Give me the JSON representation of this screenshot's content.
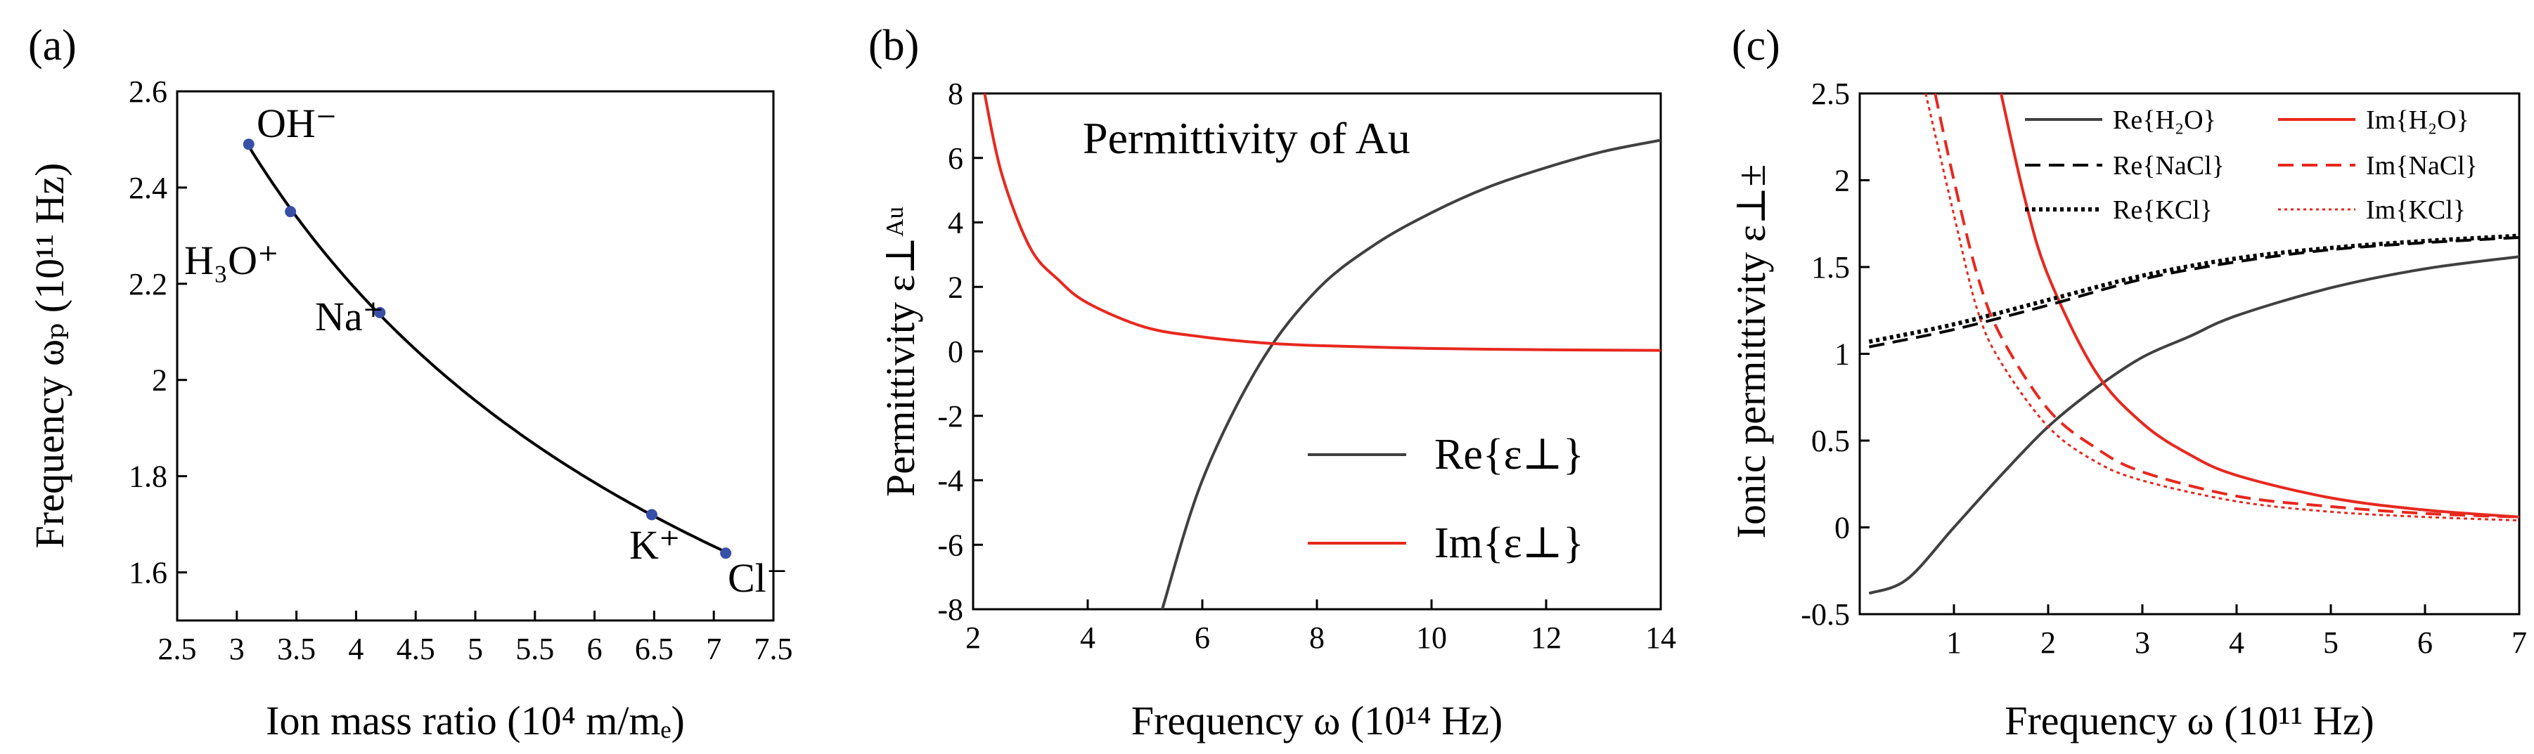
{
  "figure": {
    "panels": [
      {
        "id": "a",
        "panel_label": "(a)",
        "xlabel": "Ion mass ratio (10⁴ m/mₑ)",
        "ylabel": "Frequency ωₚ (10¹¹ Hz)",
        "annotations": [
          "OH⁻",
          "H₃O⁺",
          "Na⁺",
          "K⁺",
          "Cl⁻"
        ]
      },
      {
        "id": "b",
        "panel_label": "(b)",
        "xlabel": "Frequency ω (10¹⁴ Hz)",
        "ylabel": "Permittivity ε⊥ᴬᵘ",
        "annotation": "Permittivity of Au",
        "legend": [
          "Re{ε⊥}",
          "Im{ε⊥}"
        ]
      },
      {
        "id": "c",
        "panel_label": "(c)",
        "xlabel": "Frequency ω (10¹¹ Hz)",
        "ylabel": "Ionic permittivity ε⊥±",
        "legend": [
          "Re{H₂O}",
          "Im{H₂O}",
          "Re{NaCl}",
          "Im{NaCl}",
          "Re{KCl}",
          "Im{KCl}"
        ]
      }
    ]
  },
  "chart_data": [
    {
      "type": "scatter",
      "panel": "(a)",
      "xlim": [
        2.5,
        7.5
      ],
      "ylim": [
        1.5,
        2.6
      ],
      "xticks": [
        "2.5",
        "3",
        "3.5",
        "4",
        "4.5",
        "5",
        "5.5",
        "6",
        "6.5",
        "7",
        "7.5"
      ],
      "yticks": [
        "1.6",
        "1.8",
        "2",
        "2.2",
        "2.4",
        "2.6"
      ],
      "xlabel": "Ion mass ratio (10⁴ m/mₑ)",
      "ylabel": "Frequency ωₚ (10¹¹ Hz)",
      "points": [
        {
          "label": "OH⁻",
          "x": 3.1,
          "y": 2.49
        },
        {
          "label": "H₃O⁺",
          "x": 3.45,
          "y": 2.35
        },
        {
          "label": "Na⁺",
          "x": 4.2,
          "y": 2.14
        },
        {
          "label": "K⁺",
          "x": 6.48,
          "y": 1.72
        },
        {
          "label": "Cl⁻",
          "x": 7.1,
          "y": 1.64
        }
      ],
      "fit_curve": "y ∝ 1/√x",
      "marker_color": "#3850a8",
      "line_color": "#000000"
    },
    {
      "type": "line",
      "panel": "(b)",
      "xlim": [
        2,
        14
      ],
      "ylim": [
        -8,
        8
      ],
      "xticks": [
        "2",
        "4",
        "6",
        "8",
        "10",
        "12",
        "14"
      ],
      "yticks": [
        "-8",
        "-6",
        "-4",
        "-2",
        "0",
        "2",
        "4",
        "6",
        "8"
      ],
      "xlabel": "Frequency ω (10¹⁴ Hz)",
      "ylabel": "Permittivity ε⊥ᴬᵘ",
      "series": [
        {
          "name": "Re{ε⊥}",
          "color": "#404040",
          "x": [
            5.3,
            6,
            7,
            8,
            9,
            10,
            11,
            12,
            13,
            14
          ],
          "y": [
            -8,
            -4,
            -0.4,
            1.9,
            3.3,
            4.3,
            5.1,
            5.7,
            6.2,
            6.55
          ]
        },
        {
          "name": "Im{ε⊥}",
          "color": "#e8281e",
          "x": [
            2.2,
            2.5,
            3,
            3.5,
            4,
            5,
            6,
            7,
            8,
            10,
            12,
            14
          ],
          "y": [
            8,
            5.5,
            3.2,
            2.2,
            1.5,
            0.75,
            0.45,
            0.27,
            0.18,
            0.09,
            0.05,
            0.03
          ]
        }
      ]
    },
    {
      "type": "line",
      "panel": "(c)",
      "xlim": [
        0,
        7
      ],
      "ylim": [
        -0.5,
        2.5
      ],
      "xticks": [
        "1",
        "2",
        "3",
        "4",
        "5",
        "6",
        "7"
      ],
      "yticks": [
        "-0.5",
        "0",
        "0.5",
        "1",
        "1.5",
        "2",
        "2.5"
      ],
      "xlabel": "Frequency ω (10¹¹ Hz)",
      "ylabel": "Ionic permittivity ε⊥±",
      "series": [
        {
          "name": "Re{H₂O}",
          "color": "#404040",
          "dash": "solid",
          "x": [
            0.1,
            0.5,
            1,
            1.5,
            2,
            2.5,
            3,
            3.5,
            4,
            5,
            6,
            7
          ],
          "y": [
            -0.38,
            -0.3,
            0.0,
            0.3,
            0.58,
            0.8,
            0.98,
            1.1,
            1.22,
            1.38,
            1.49,
            1.56
          ]
        },
        {
          "name": "Im{H₂O}",
          "color": "#e8281e",
          "dash": "solid",
          "x": [
            1.5,
            1.75,
            2,
            2.5,
            3,
            3.5,
            4,
            5,
            6,
            7
          ],
          "y": [
            2.5,
            1.9,
            1.45,
            0.9,
            0.6,
            0.42,
            0.3,
            0.17,
            0.1,
            0.06
          ]
        },
        {
          "name": "Re{NaCl}",
          "color": "#000000",
          "dash": "dashed",
          "x": [
            0.1,
            1,
            2,
            3,
            4,
            5,
            6,
            7
          ],
          "y": [
            1.04,
            1.14,
            1.28,
            1.43,
            1.53,
            1.6,
            1.64,
            1.67
          ]
        },
        {
          "name": "Im{NaCl}",
          "color": "#e8281e",
          "dash": "dashed",
          "x": [
            0.8,
            1,
            1.25,
            1.5,
            2,
            2.5,
            3,
            4,
            5,
            6,
            7
          ],
          "y": [
            2.5,
            2.0,
            1.45,
            1.1,
            0.68,
            0.46,
            0.32,
            0.18,
            0.12,
            0.08,
            0.06
          ]
        },
        {
          "name": "Re{KCl}",
          "color": "#000000",
          "dash": "dotted",
          "x": [
            0.1,
            1,
            2,
            3,
            4,
            5,
            6,
            7
          ],
          "y": [
            1.07,
            1.17,
            1.31,
            1.45,
            1.55,
            1.61,
            1.65,
            1.68
          ]
        },
        {
          "name": "Im{KCl}",
          "color": "#e8281e",
          "dash": "dotted",
          "x": [
            0.7,
            1,
            1.25,
            1.5,
            2,
            2.5,
            3,
            4,
            5,
            6,
            7
          ],
          "y": [
            2.5,
            1.8,
            1.25,
            0.95,
            0.58,
            0.38,
            0.27,
            0.15,
            0.09,
            0.06,
            0.04
          ]
        }
      ]
    }
  ]
}
